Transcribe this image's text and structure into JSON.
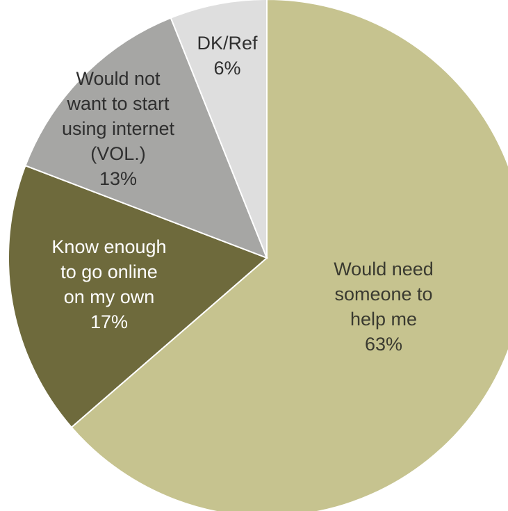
{
  "chart_data": {
    "type": "pie",
    "slices": [
      {
        "label_lines": [
          "Would need",
          "someone to",
          "help me"
        ],
        "value": 63,
        "value_label": "63%",
        "color": "#c6c38f",
        "text_color": "#3a3a30"
      },
      {
        "label_lines": [
          "Know enough",
          "to go online",
          "on my own"
        ],
        "value": 17,
        "value_label": "17%",
        "color": "#6e6a3c",
        "text_color": "#ffffff"
      },
      {
        "label_lines": [
          "Would not",
          "want to start",
          "using internet",
          "(VOL.)"
        ],
        "value": 13,
        "value_label": "13%",
        "color": "#a6a6a4",
        "text_color": "#2f2f2f"
      },
      {
        "label_lines": [
          "DK/Ref"
        ],
        "value": 6,
        "value_label": "6%",
        "color": "#dedede",
        "text_color": "#2f2f2f"
      }
    ]
  }
}
